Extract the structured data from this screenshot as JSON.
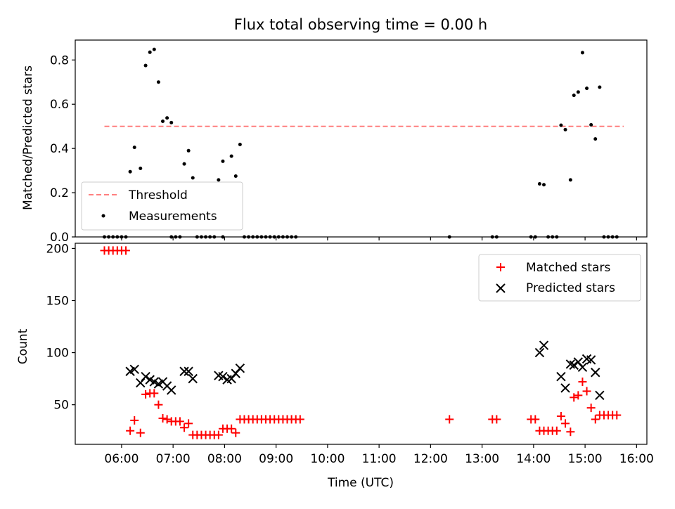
{
  "chart_data": [
    {
      "type": "scatter",
      "title": "Flux total observing time = 0.00 h",
      "xlabel": "",
      "ylabel": "Matched/Predicted stars",
      "xlim_hours": [
        5.1,
        16.2
      ],
      "ylim": [
        0,
        0.89
      ],
      "yticks": [
        0.0,
        0.2,
        0.4,
        0.6,
        0.8
      ],
      "ytick_labels": [
        "0.0",
        "0.2",
        "0.4",
        "0.6",
        "0.8"
      ],
      "grid": false,
      "legend_position": "lower-left",
      "threshold": {
        "name": "Threshold",
        "value": 0.5,
        "x_range": [
          "05:40",
          "15:45"
        ],
        "color": "#ff7f7f",
        "style": "dashed"
      },
      "series": [
        {
          "name": "Measurements",
          "color": "#000000",
          "marker": "dot",
          "points": [
            [
              "05:40",
              0
            ],
            [
              "05:45",
              0
            ],
            [
              "05:50",
              0
            ],
            [
              "05:55",
              0
            ],
            [
              "06:00",
              0
            ],
            [
              "06:05",
              0
            ],
            [
              "06:10",
              0.295
            ],
            [
              "06:15",
              0.405
            ],
            [
              "06:22",
              0.31
            ],
            [
              "06:28",
              0.775
            ],
            [
              "06:33",
              0.835
            ],
            [
              "06:38",
              0.848
            ],
            [
              "06:43",
              0.7
            ],
            [
              "06:48",
              0.523
            ],
            [
              "06:53",
              0.538
            ],
            [
              "06:58",
              0.517
            ],
            [
              "06:58",
              0
            ],
            [
              "07:03",
              0
            ],
            [
              "07:08",
              0
            ],
            [
              "07:13",
              0.33
            ],
            [
              "07:18",
              0.39
            ],
            [
              "07:23",
              0.267
            ],
            [
              "07:28",
              0
            ],
            [
              "07:33",
              0
            ],
            [
              "07:38",
              0
            ],
            [
              "07:43",
              0
            ],
            [
              "07:48",
              0
            ],
            [
              "07:53",
              0.258
            ],
            [
              "07:58",
              0.342
            ],
            [
              "07:58",
              0
            ],
            [
              "08:08",
              0.365
            ],
            [
              "08:13",
              0.275
            ],
            [
              "08:18",
              0.418
            ],
            [
              "08:23",
              0
            ],
            [
              "08:28",
              0
            ],
            [
              "08:33",
              0
            ],
            [
              "08:38",
              0
            ],
            [
              "08:43",
              0
            ],
            [
              "08:48",
              0
            ],
            [
              "08:53",
              0
            ],
            [
              "08:58",
              0
            ],
            [
              "09:03",
              0
            ],
            [
              "09:08",
              0
            ],
            [
              "09:13",
              0
            ],
            [
              "09:18",
              0
            ],
            [
              "09:23",
              0
            ],
            [
              "12:22",
              0
            ],
            [
              "13:12",
              0
            ],
            [
              "13:17",
              0
            ],
            [
              "13:57",
              0
            ],
            [
              "14:02",
              0
            ],
            [
              "14:07",
              0.24
            ],
            [
              "14:12",
              0.236
            ],
            [
              "14:17",
              0
            ],
            [
              "14:22",
              0
            ],
            [
              "14:27",
              0
            ],
            [
              "14:32",
              0.505
            ],
            [
              "14:37",
              0.485
            ],
            [
              "14:43",
              0.258
            ],
            [
              "14:47",
              0.64
            ],
            [
              "14:52",
              0.655
            ],
            [
              "14:57",
              0.833
            ],
            [
              "15:02",
              0.672
            ],
            [
              "15:07",
              0.507
            ],
            [
              "15:12",
              0.443
            ],
            [
              "15:17",
              0.677
            ],
            [
              "15:22",
              0
            ],
            [
              "15:27",
              0
            ],
            [
              "15:32",
              0
            ],
            [
              "15:37",
              0
            ]
          ]
        }
      ]
    },
    {
      "type": "scatter",
      "title": "",
      "xlabel": "Time (UTC)",
      "ylabel": "Count",
      "xlim_hours": [
        5.1,
        16.2
      ],
      "ylim": [
        12,
        205
      ],
      "yticks": [
        50,
        100,
        150,
        200
      ],
      "ytick_labels": [
        "50",
        "100",
        "150",
        "200"
      ],
      "xticks": [
        "06:00",
        "07:00",
        "08:00",
        "09:00",
        "10:00",
        "11:00",
        "12:00",
        "13:00",
        "14:00",
        "15:00",
        "16:00"
      ],
      "grid": false,
      "legend_position": "upper-right",
      "series": [
        {
          "name": "Matched stars",
          "color": "#ff0000",
          "marker": "plus",
          "points": [
            [
              "05:40",
              198
            ],
            [
              "05:45",
              198
            ],
            [
              "05:50",
              198
            ],
            [
              "05:55",
              198
            ],
            [
              "06:00",
              198
            ],
            [
              "06:05",
              198
            ],
            [
              "06:10",
              25
            ],
            [
              "06:15",
              35
            ],
            [
              "06:22",
              23
            ],
            [
              "06:28",
              60
            ],
            [
              "06:33",
              61
            ],
            [
              "06:38",
              61
            ],
            [
              "06:43",
              50
            ],
            [
              "06:48",
              37
            ],
            [
              "06:53",
              36
            ],
            [
              "06:58",
              34
            ],
            [
              "07:03",
              34
            ],
            [
              "07:08",
              34
            ],
            [
              "07:13",
              28
            ],
            [
              "07:18",
              32
            ],
            [
              "07:23",
              21
            ],
            [
              "07:28",
              21
            ],
            [
              "07:33",
              21
            ],
            [
              "07:38",
              21
            ],
            [
              "07:43",
              21
            ],
            [
              "07:48",
              21
            ],
            [
              "07:53",
              21
            ],
            [
              "07:58",
              27
            ],
            [
              "08:03",
              27
            ],
            [
              "08:08",
              27
            ],
            [
              "08:13",
              23
            ],
            [
              "08:18",
              36
            ],
            [
              "08:23",
              36
            ],
            [
              "08:28",
              36
            ],
            [
              "08:33",
              36
            ],
            [
              "08:38",
              36
            ],
            [
              "08:43",
              36
            ],
            [
              "08:48",
              36
            ],
            [
              "08:53",
              36
            ],
            [
              "08:58",
              36
            ],
            [
              "09:03",
              36
            ],
            [
              "09:08",
              36
            ],
            [
              "09:13",
              36
            ],
            [
              "09:18",
              36
            ],
            [
              "09:23",
              36
            ],
            [
              "09:28",
              36
            ],
            [
              "12:22",
              36
            ],
            [
              "13:12",
              36
            ],
            [
              "13:17",
              36
            ],
            [
              "13:57",
              36
            ],
            [
              "14:02",
              36
            ],
            [
              "14:07",
              25
            ],
            [
              "14:12",
              25
            ],
            [
              "14:17",
              25
            ],
            [
              "14:22",
              25
            ],
            [
              "14:27",
              25
            ],
            [
              "14:32",
              39
            ],
            [
              "14:37",
              32
            ],
            [
              "14:43",
              24
            ],
            [
              "14:47",
              57
            ],
            [
              "14:52",
              59
            ],
            [
              "14:57",
              72
            ],
            [
              "15:02",
              63
            ],
            [
              "15:07",
              47
            ],
            [
              "15:12",
              36
            ],
            [
              "15:17",
              40
            ],
            [
              "15:22",
              40
            ],
            [
              "15:27",
              40
            ],
            [
              "15:32",
              40
            ],
            [
              "15:37",
              40
            ]
          ]
        },
        {
          "name": "Predicted stars",
          "color": "#000000",
          "marker": "x",
          "points": [
            [
              "06:10",
              82
            ],
            [
              "06:15",
              84
            ],
            [
              "06:22",
              71
            ],
            [
              "06:28",
              77
            ],
            [
              "06:33",
              74
            ],
            [
              "06:38",
              72
            ],
            [
              "06:43",
              70
            ],
            [
              "06:48",
              72
            ],
            [
              "06:53",
              68
            ],
            [
              "06:58",
              64
            ],
            [
              "07:13",
              82
            ],
            [
              "07:18",
              82
            ],
            [
              "07:23",
              75
            ],
            [
              "07:53",
              78
            ],
            [
              "07:58",
              77
            ],
            [
              "08:03",
              74
            ],
            [
              "08:08",
              75
            ],
            [
              "08:13",
              80
            ],
            [
              "08:18",
              85
            ],
            [
              "14:07",
              100
            ],
            [
              "14:12",
              107
            ],
            [
              "14:32",
              77
            ],
            [
              "14:37",
              66
            ],
            [
              "14:43",
              89
            ],
            [
              "14:47",
              88
            ],
            [
              "14:52",
              91
            ],
            [
              "14:57",
              86
            ],
            [
              "15:02",
              94
            ],
            [
              "15:07",
              93
            ],
            [
              "15:12",
              81
            ],
            [
              "15:17",
              59
            ]
          ]
        }
      ]
    }
  ]
}
